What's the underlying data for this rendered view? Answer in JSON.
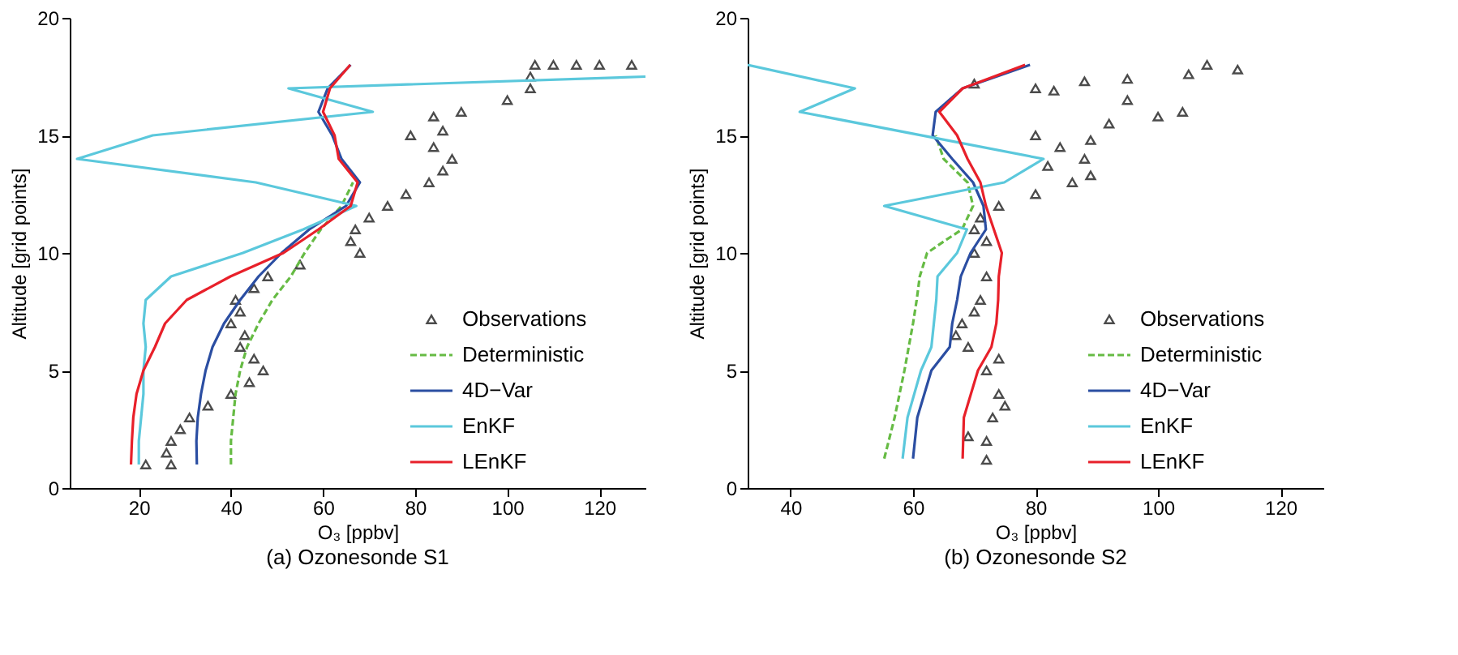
{
  "chart_data": [
    {
      "type": "line",
      "title": "(a) Ozonesonde S1",
      "xlabel": "O₃ [ppbv]",
      "ylabel": "Altitude [grid points]",
      "xlim": [
        5,
        130
      ],
      "ylim": [
        0,
        20
      ],
      "xticks": [
        20,
        40,
        60,
        80,
        100,
        120
      ],
      "yticks": [
        0,
        5,
        10,
        15,
        20
      ],
      "legend": "bottom right",
      "series": [
        {
          "name": "Observations",
          "type": "scatter",
          "marker": "triangle",
          "color": "#000000",
          "x": [
            21.5,
            27,
            26,
            27,
            29,
            31,
            35,
            40,
            44,
            47,
            45,
            42,
            43,
            40,
            42,
            41,
            45,
            48,
            55,
            68,
            66,
            67,
            70,
            74,
            78,
            83,
            86,
            88,
            84,
            79,
            86,
            84,
            90,
            100,
            105,
            105,
            106,
            110,
            115,
            120,
            127
          ],
          "values": [
            1,
            1,
            1.5,
            2,
            2.5,
            3,
            3.5,
            4,
            4.5,
            5,
            5.5,
            6,
            6.5,
            7,
            7.5,
            8,
            8.5,
            9,
            9.5,
            10,
            10.5,
            11,
            11.5,
            12,
            12.5,
            13,
            13.5,
            14,
            14.5,
            15,
            15.2,
            15.8,
            16,
            16.5,
            17,
            17.5,
            18,
            18,
            18,
            18,
            18
          ]
        },
        {
          "name": "Deterministic",
          "color": "#66bb44",
          "line_style": "dashed",
          "x": [
            40,
            40,
            40.5,
            41,
            42,
            43.5,
            46,
            49,
            53,
            56,
            59.5,
            64,
            66.5
          ],
          "values": [
            1,
            2,
            3,
            4,
            5,
            6,
            7,
            8,
            9,
            10,
            11,
            12,
            13
          ]
        },
        {
          "name": "4D−Var",
          "color": "#2b4ea2",
          "x": [
            32.6,
            32.5,
            32.8,
            33.5,
            34.5,
            36,
            38.5,
            42,
            46,
            51,
            57,
            65,
            68,
            64,
            62,
            59,
            61,
            66
          ],
          "values": [
            1,
            2,
            3,
            4,
            5,
            6,
            7,
            8,
            9,
            10,
            11,
            12,
            13,
            14,
            15,
            16,
            17,
            18
          ]
        },
        {
          "name": "EnKF",
          "color": "#5bc8dc",
          "x": [
            20,
            20,
            20.5,
            21,
            21,
            21.5,
            21,
            21.5,
            27,
            42.6,
            55.7,
            67.2,
            45.4,
            6.6,
            23,
            70.8,
            52.5,
            130
          ],
          "values": [
            1,
            2,
            3,
            4,
            5,
            6,
            7,
            8,
            9,
            10,
            11,
            12,
            13,
            14,
            15,
            16,
            17,
            17.5
          ]
        },
        {
          "name": "LEnKF",
          "color": "#e8202a",
          "x": [
            18.3,
            18.5,
            18.8,
            19.5,
            21,
            23.5,
            25.7,
            30.4,
            39.9,
            51.4,
            59,
            66,
            67.5,
            63.4,
            62.5,
            60,
            61.5,
            65.9
          ],
          "values": [
            1,
            2,
            3,
            4,
            5,
            6,
            7,
            8,
            9,
            10,
            11,
            12,
            13,
            14,
            15,
            16,
            17,
            18
          ]
        }
      ]
    },
    {
      "type": "line",
      "title": "(b) Ozonesonde S2",
      "xlabel": "O₃ [ppbv]",
      "ylabel": "Altitude [grid points]",
      "xlim": [
        33,
        127
      ],
      "ylim": [
        0,
        20
      ],
      "xticks": [
        40,
        60,
        80,
        100,
        120
      ],
      "yticks": [
        0,
        5,
        10,
        15,
        20
      ],
      "legend": "bottom right",
      "series": [
        {
          "name": "Observations",
          "type": "scatter",
          "marker": "triangle",
          "color": "#000000",
          "x": [
            72,
            72,
            69,
            73,
            75,
            74,
            72,
            74,
            69,
            67,
            68,
            70,
            71,
            72,
            70,
            72,
            70,
            71,
            74,
            80,
            86,
            89,
            82,
            88,
            84,
            89,
            80,
            92,
            100,
            104,
            95,
            83,
            80,
            70,
            88,
            95,
            105,
            108,
            113
          ],
          "values": [
            1.2,
            2,
            2.2,
            3,
            3.5,
            4,
            5,
            5.5,
            6,
            6.5,
            7,
            7.5,
            8,
            9,
            10,
            10.5,
            11,
            11.5,
            12,
            12.5,
            13,
            13.3,
            13.7,
            14,
            14.5,
            14.8,
            15,
            15.5,
            15.8,
            16,
            16.5,
            16.9,
            17,
            17.2,
            17.3,
            17.4,
            17.6,
            18,
            17.8
          ]
        },
        {
          "name": "Deterministic",
          "color": "#66bb44",
          "line_style": "dashed",
          "x": [
            55.3,
            57,
            58.6,
            60,
            60.6,
            61.1,
            62.3,
            65.1,
            68,
            69.8,
            68.9,
            65,
            63.7
          ],
          "values": [
            1.25,
            3,
            5,
            7,
            8,
            9,
            10,
            10.5,
            11,
            12,
            13,
            14,
            15
          ]
        },
        {
          "name": "4D−Var",
          "color": "#2b4ea2",
          "x": [
            60,
            60.7,
            63,
            66,
            66.4,
            67.2,
            67.8,
            69.4,
            71.9,
            71.5,
            69.8,
            66.4,
            63.2,
            63.7,
            68.1,
            79.1
          ],
          "values": [
            1.25,
            3,
            5,
            6,
            7,
            8,
            9,
            10,
            11,
            12,
            13,
            14,
            15,
            16,
            17,
            18
          ]
        },
        {
          "name": "EnKF",
          "color": "#5bc8dc",
          "x": [
            58.3,
            59.1,
            61.3,
            63,
            63.4,
            63.8,
            64,
            67.2,
            68.8,
            55.3,
            74.9,
            81.3,
            41.5,
            50.5,
            33
          ],
          "values": [
            1.25,
            3,
            5,
            6,
            7,
            8,
            9,
            10,
            11,
            12,
            13,
            14,
            16,
            17,
            18
          ]
        },
        {
          "name": "LEnKF",
          "color": "#e8202a",
          "x": [
            68.1,
            68.3,
            70.6,
            72.8,
            73.6,
            73.9,
            74,
            74.5,
            73.2,
            71.9,
            71,
            68.9,
            67.2,
            64.3,
            68.1,
            78.3
          ],
          "values": [
            1.25,
            3,
            5,
            6,
            7,
            8,
            9,
            10,
            11,
            12,
            13,
            14,
            15,
            16,
            17,
            18
          ]
        }
      ]
    }
  ]
}
